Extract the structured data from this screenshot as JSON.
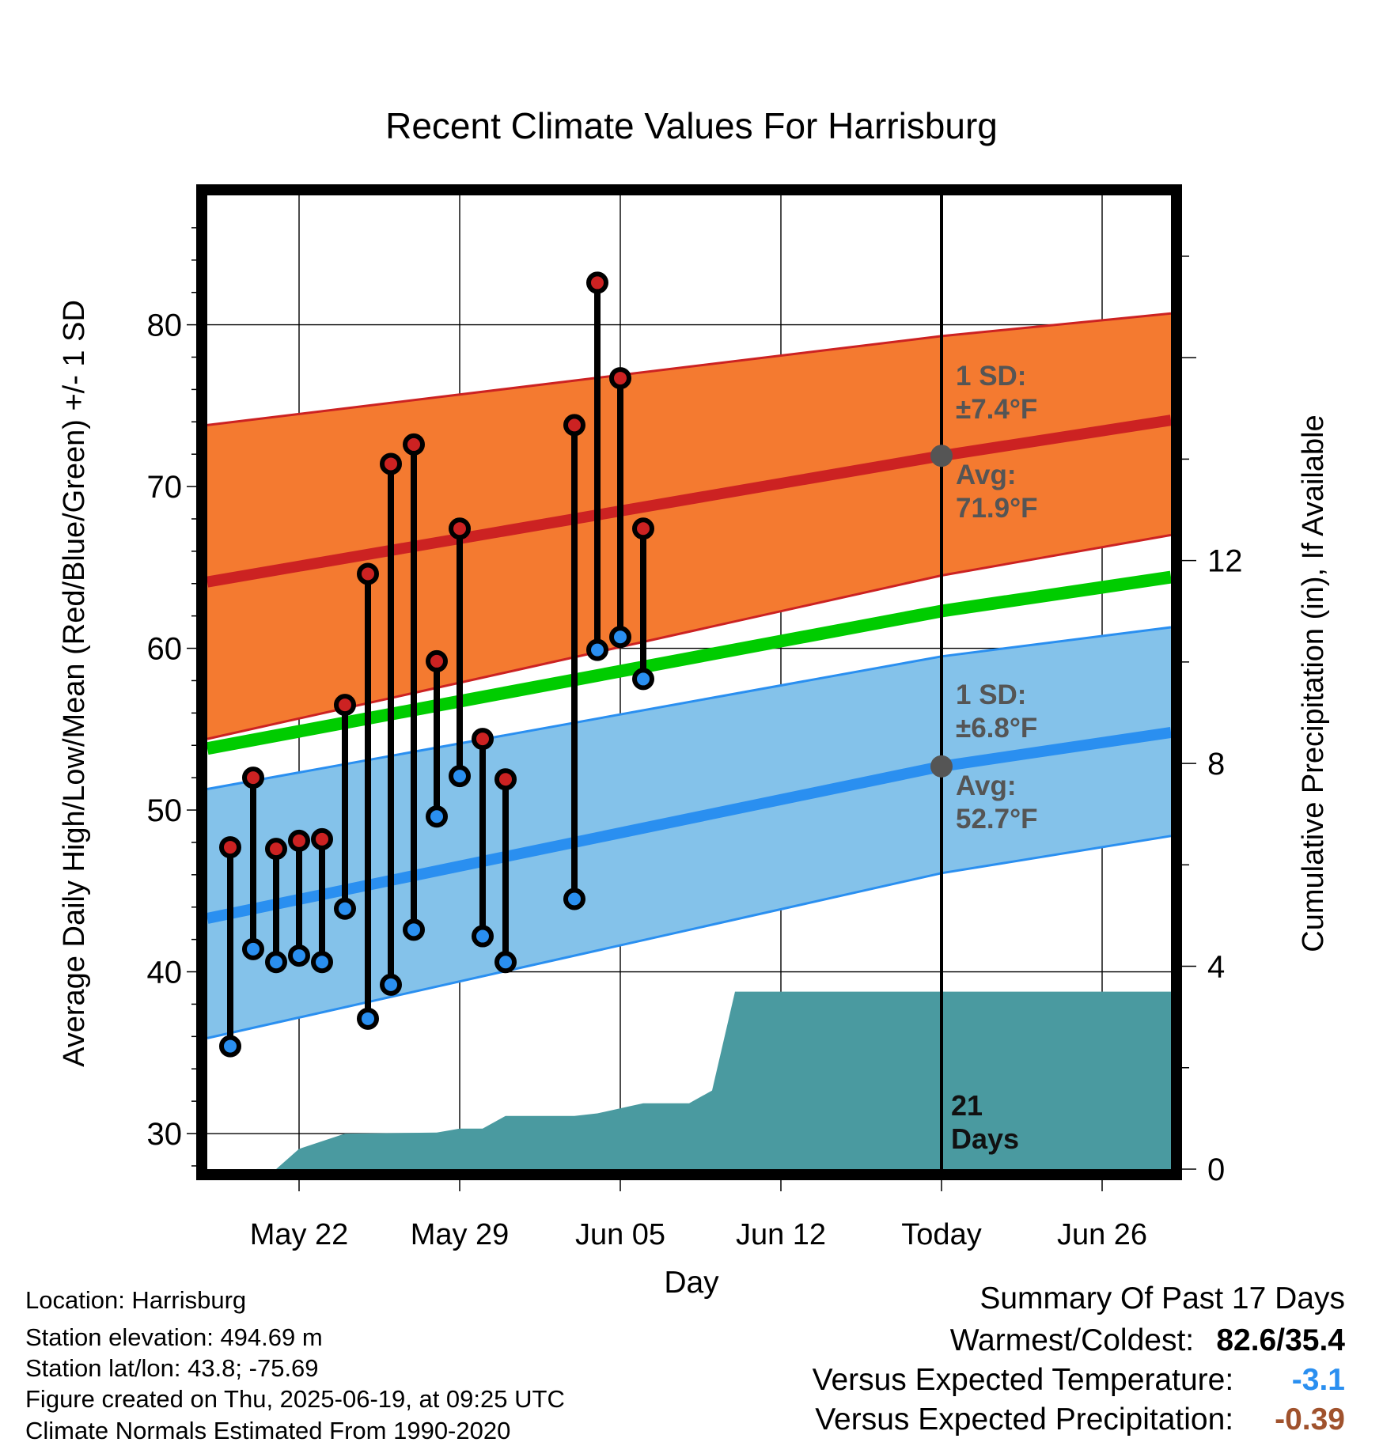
{
  "chart_data": {
    "type": "line",
    "title": "Recent Climate Values For Harrisburg",
    "xlabel": "Day",
    "ylabel": "Average Daily High/Low/Mean (Red/Blue/Green) +/- 1 SD",
    "y2label": "Cumulative Precipitation (in), If Available",
    "x_tick_labels": [
      "May 22",
      "May 29",
      "Jun 05",
      "Jun 12",
      "Today",
      "Jun 26"
    ],
    "y_ticks": [
      30,
      40,
      50,
      60,
      70,
      80
    ],
    "y2_ticks": [
      0,
      4,
      8,
      12
    ],
    "ylim": [
      27.8,
      88
    ],
    "y2lim": [
      0,
      19.2
    ],
    "xlim": [
      "2025-05-18",
      "2025-06-29"
    ],
    "today": "2025-06-19",
    "grid": true,
    "normals": {
      "high_avg": {
        "x": [
          "2025-05-18",
          "2025-06-19",
          "2025-06-29"
        ],
        "y": [
          64.1,
          71.9,
          74.1
        ]
      },
      "high_upper": {
        "x": [
          "2025-05-18",
          "2025-06-19",
          "2025-06-29"
        ],
        "y": [
          73.8,
          79.3,
          80.7
        ]
      },
      "high_lower": {
        "x": [
          "2025-05-18",
          "2025-06-19",
          "2025-06-29"
        ],
        "y": [
          54.4,
          64.5,
          67.0
        ]
      },
      "mean": {
        "x": [
          "2025-05-18",
          "2025-06-19",
          "2025-06-29"
        ],
        "y": [
          53.8,
          62.3,
          64.4
        ]
      },
      "low_avg": {
        "x": [
          "2025-05-18",
          "2025-06-19",
          "2025-06-29"
        ],
        "y": [
          43.3,
          52.7,
          54.8
        ]
      },
      "low_upper": {
        "x": [
          "2025-05-18",
          "2025-06-19",
          "2025-06-29"
        ],
        "y": [
          51.3,
          59.5,
          61.3
        ]
      },
      "low_lower": {
        "x": [
          "2025-05-18",
          "2025-06-19",
          "2025-06-29"
        ],
        "y": [
          35.9,
          46.1,
          48.4
        ]
      }
    },
    "series": [
      {
        "name": "High",
        "color": "#cc2222",
        "x": [
          "2025-05-19",
          "2025-05-20",
          "2025-05-21",
          "2025-05-22",
          "2025-05-23",
          "2025-05-24",
          "2025-05-25",
          "2025-05-26",
          "2025-05-27",
          "2025-05-28",
          "2025-05-29",
          "2025-05-30",
          "2025-05-31",
          "2025-06-03",
          "2025-06-04",
          "2025-06-05",
          "2025-06-06"
        ],
        "values": [
          47.7,
          52.0,
          47.6,
          48.1,
          48.2,
          56.5,
          64.6,
          71.4,
          72.6,
          59.2,
          67.4,
          54.4,
          51.9,
          73.8,
          82.6,
          76.7,
          67.4
        ]
      },
      {
        "name": "Low",
        "color": "#2a8ff0",
        "x": [
          "2025-05-19",
          "2025-05-20",
          "2025-05-21",
          "2025-05-22",
          "2025-05-23",
          "2025-05-24",
          "2025-05-25",
          "2025-05-26",
          "2025-05-27",
          "2025-05-28",
          "2025-05-29",
          "2025-05-30",
          "2025-05-31",
          "2025-06-03",
          "2025-06-04",
          "2025-06-05",
          "2025-06-06"
        ],
        "values": [
          35.4,
          41.4,
          40.6,
          41.0,
          40.6,
          43.9,
          37.1,
          39.2,
          42.6,
          49.6,
          52.1,
          42.2,
          40.6,
          44.5,
          59.9,
          60.7,
          58.1
        ]
      }
    ],
    "precipitation": {
      "x": [
        "2025-05-18",
        "2025-05-21",
        "2025-05-22",
        "2025-05-24",
        "2025-05-28",
        "2025-05-29",
        "2025-05-30",
        "2025-05-31",
        "2025-06-03",
        "2025-06-04",
        "2025-06-05",
        "2025-06-06",
        "2025-06-07",
        "2025-06-08",
        "2025-06-09",
        "2025-06-10",
        "2025-06-29"
      ],
      "values": [
        0,
        0,
        0.4,
        0.7,
        0.72,
        0.8,
        0.8,
        1.05,
        1.05,
        1.1,
        1.2,
        1.3,
        1.3,
        1.3,
        1.55,
        3.5,
        3.5
      ],
      "color": "#4a9aa0"
    },
    "annotations": {
      "high_sd": "1 SD:",
      "high_sd_val": "±7.4°F",
      "high_avg": "Avg:",
      "high_avg_val": "71.9°F",
      "low_sd": "1 SD:",
      "low_sd_val": "±6.8°F",
      "low_avg": "Avg:",
      "low_avg_val": "52.7°F",
      "days_num": "21",
      "days_word": "Days"
    },
    "colors": {
      "high_band": "#f47a30",
      "high_line": "#cc2222",
      "mean_line": "#00cc00",
      "low_band": "#84c2ea",
      "low_line": "#2a8ff0",
      "annotation": "#555555"
    }
  },
  "info": {
    "location": "Location: Harrisburg",
    "elevation": "Station elevation: 494.69 m",
    "latlon": "Station lat/lon: 43.8; -75.69",
    "created": "Figure created on Thu, 2025-06-19, at 09:25 UTC",
    "normals": "Climate Normals Estimated From 1990-2020"
  },
  "summary": {
    "title": "Summary Of Past 17 Days",
    "warmest_label": "Warmest/Coldest:",
    "warmest_value": "82.6/35.4",
    "temp_label": "Versus Expected Temperature:",
    "temp_value": "-3.1",
    "temp_color": "#2a8ff0",
    "precip_label": "Versus Expected Precipitation:",
    "precip_value": "-0.39",
    "precip_color": "#a0522d"
  }
}
